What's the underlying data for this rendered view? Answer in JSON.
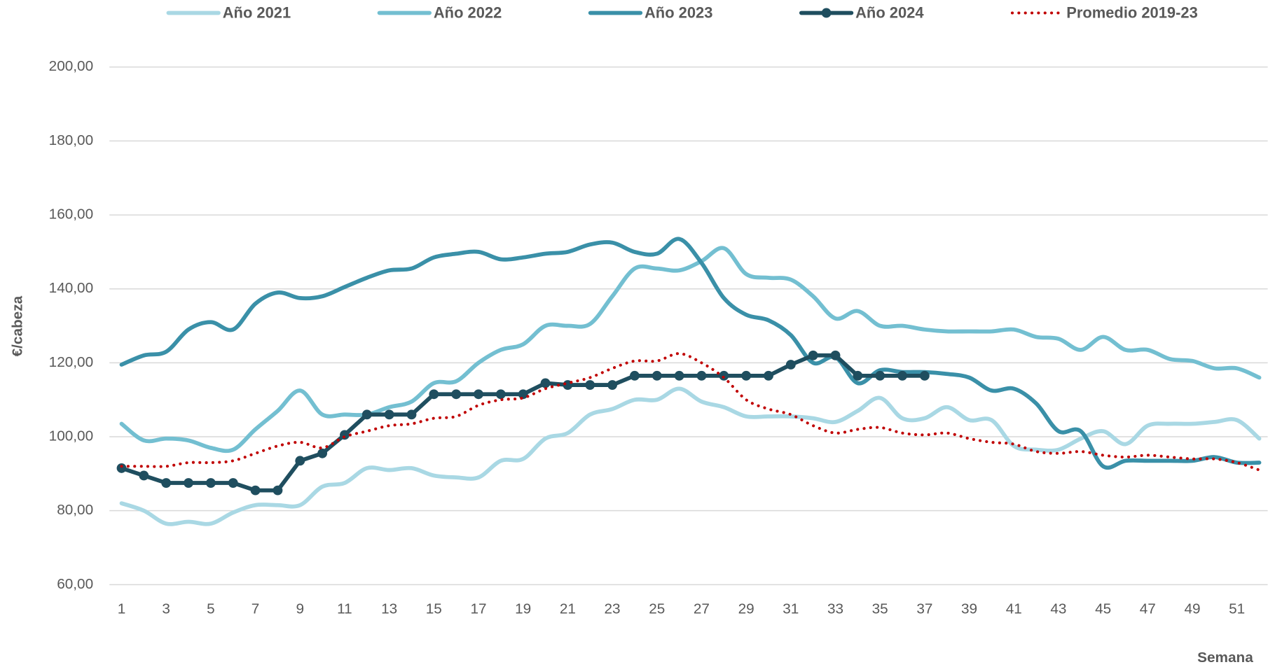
{
  "chart_data": {
    "type": "line",
    "y_label": "€/cabeza",
    "x_label": "Semana",
    "categories": [
      1,
      null,
      3,
      null,
      5,
      null,
      7,
      null,
      9,
      null,
      11,
      null,
      13,
      null,
      15,
      null,
      17,
      null,
      19,
      null,
      21,
      null,
      23,
      null,
      25,
      null,
      27,
      null,
      29,
      null,
      31,
      null,
      33,
      null,
      35,
      null,
      37,
      null,
      39,
      null,
      41,
      null,
      43,
      null,
      45,
      null,
      47,
      null,
      49,
      null,
      51,
      null
    ],
    "ylim": [
      60,
      200
    ],
    "yticks": [
      {
        "value": 60,
        "label": "60,00"
      },
      {
        "value": 80,
        "label": "80,00"
      },
      {
        "value": 100,
        "label": "100,00"
      },
      {
        "value": 120,
        "label": "120,00"
      },
      {
        "value": 140,
        "label": "140,00"
      },
      {
        "value": 160,
        "label": "160,00"
      },
      {
        "value": 180,
        "label": "180,00"
      },
      {
        "value": 200,
        "label": "200,00"
      }
    ],
    "grid": true,
    "legend": "top",
    "series": [
      {
        "name": "Año 2021",
        "color": "#a9d8e4",
        "smooth": true,
        "values": [
          82,
          80,
          76.5,
          77,
          76.5,
          79.5,
          81.5,
          81.5,
          81.5,
          86.5,
          87.5,
          91.5,
          91,
          91.5,
          89.5,
          89,
          89,
          93.5,
          94,
          99.5,
          101,
          106,
          107.5,
          110,
          110,
          113,
          109.5,
          108,
          105.5,
          105.5,
          105.5,
          105,
          104,
          107,
          110.5,
          105,
          105,
          108,
          104.5,
          104.5,
          97.5,
          96.5,
          96.5,
          99.5,
          101.5,
          98,
          103,
          103.5,
          103.5,
          104,
          104.5,
          99.5
        ]
      },
      {
        "name": "Año 2022",
        "color": "#73bfd1",
        "smooth": true,
        "values": [
          103.5,
          99,
          99.5,
          99,
          97,
          96.5,
          102,
          107,
          112.5,
          106,
          106,
          106,
          108,
          109.5,
          114.5,
          115,
          120,
          123.5,
          125,
          130,
          130,
          130.5,
          138,
          145.5,
          145.5,
          145,
          147.5,
          151,
          144,
          143,
          142.5,
          138,
          132,
          134,
          130,
          130,
          129,
          128.5,
          128.5,
          128.5,
          129,
          127,
          126.5,
          123.5,
          127,
          123.5,
          123.5,
          121,
          120.5,
          118.5,
          118.5,
          116
        ]
      },
      {
        "name": "Año 2023",
        "color": "#3a90a8",
        "smooth": true,
        "values": [
          119.5,
          122,
          123,
          129,
          131,
          129,
          136,
          139,
          137.5,
          138,
          140.5,
          143,
          145,
          145.5,
          148.5,
          149.5,
          150,
          148,
          148.5,
          149.5,
          150,
          152,
          152.5,
          150,
          149.5,
          153.5,
          147,
          137.5,
          133,
          131.5,
          127.5,
          120,
          121.5,
          114.5,
          118,
          117.5,
          117.5,
          117,
          116,
          112.5,
          113,
          109,
          101.5,
          101.5,
          92,
          93.5,
          93.5,
          93.5,
          93.5,
          94.5,
          93,
          93
        ]
      },
      {
        "name": "Año 2024",
        "color": "#1f4e5f",
        "markers": true,
        "values": [
          91.5,
          89.5,
          87.5,
          87.5,
          87.5,
          87.5,
          85.5,
          85.5,
          93.5,
          95.5,
          100.5,
          106,
          106,
          106,
          111.5,
          111.5,
          111.5,
          111.5,
          111.5,
          114.5,
          114,
          114,
          114,
          116.5,
          116.5,
          116.5,
          116.5,
          116.5,
          116.5,
          116.5,
          119.5,
          122,
          122,
          116.5,
          116.5,
          116.5,
          116.5,
          null,
          null,
          null,
          null,
          null,
          null,
          null,
          null,
          null,
          null,
          null,
          null,
          null,
          null,
          null
        ]
      },
      {
        "name": "Promedio 2019-23",
        "color": "#c00000",
        "style": "dotted",
        "smooth": true,
        "values": [
          92,
          92,
          92,
          93,
          93,
          93.5,
          95.5,
          97.5,
          98.5,
          97,
          100,
          101.5,
          103,
          103.5,
          105,
          105.5,
          108.5,
          110,
          110.5,
          113,
          114.5,
          116,
          118.5,
          120.5,
          120.5,
          122.5,
          120,
          116,
          110,
          107.5,
          106,
          103,
          101,
          102,
          102.5,
          101,
          100.5,
          101,
          99.5,
          98.5,
          98,
          96,
          95.5,
          96,
          95,
          94.5,
          95,
          94.5,
          94,
          94,
          93,
          91
        ]
      }
    ]
  }
}
